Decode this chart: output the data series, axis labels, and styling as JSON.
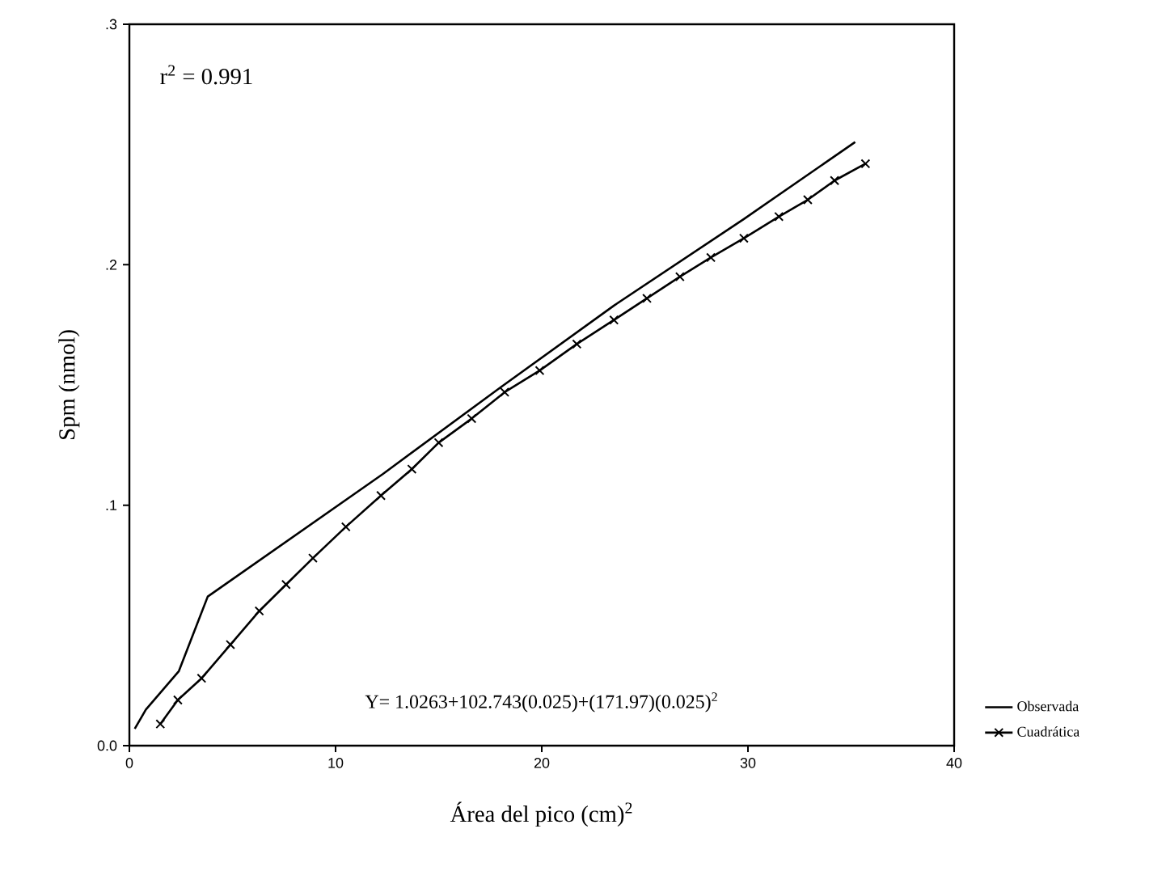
{
  "chart_data": {
    "type": "line",
    "xlabel": "Área del pico (cm)$^{2}$",
    "ylabel": "Spm (nmol)",
    "annotations": [
      "r$^{2}$ = 0.991",
      "Y= 1.0263+102.743(0.025)+(171.97)(0.025)$^{2}$"
    ],
    "xlim": [
      0,
      40
    ],
    "ylim": [
      0,
      0.3
    ],
    "xticks": [
      0,
      10,
      20,
      30,
      40
    ],
    "yticks": [
      {
        "value": 0,
        "label": "0.0"
      },
      {
        "value": 0.1,
        "label": ".1"
      },
      {
        "value": 0.2,
        "label": ".2"
      },
      {
        "value": 0.3,
        "label": ".3"
      }
    ],
    "grid": false,
    "legend": "bottom right",
    "series": [
      {
        "name": "Observada",
        "color": "#000000",
        "marker": "none",
        "x": [
          0.26,
          0.8,
          2.4,
          3.8,
          12.3,
          18,
          23.5,
          29.8,
          35.2
        ],
        "values": [
          0.007,
          0.015,
          0.031,
          0.062,
          0.113,
          0.149,
          0.183,
          0.219,
          0.251
        ]
      },
      {
        "name": "Cuadrática",
        "color": "#000000",
        "marker": "cross",
        "x": [
          1.5,
          2.35,
          3.5,
          4.9,
          6.3,
          7.6,
          8.9,
          10.5,
          12.2,
          13.7,
          15.0,
          16.6,
          18.2,
          19.9,
          21.7,
          23.5,
          25.1,
          26.7,
          28.2,
          29.8,
          31.5,
          32.9,
          34.2,
          35.7
        ],
        "values": [
          0.009,
          0.019,
          0.028,
          0.042,
          0.056,
          0.067,
          0.078,
          0.091,
          0.104,
          0.115,
          0.126,
          0.136,
          0.147,
          0.156,
          0.167,
          0.177,
          0.186,
          0.195,
          0.203,
          0.211,
          0.22,
          0.227,
          0.235,
          0.242
        ]
      }
    ]
  }
}
